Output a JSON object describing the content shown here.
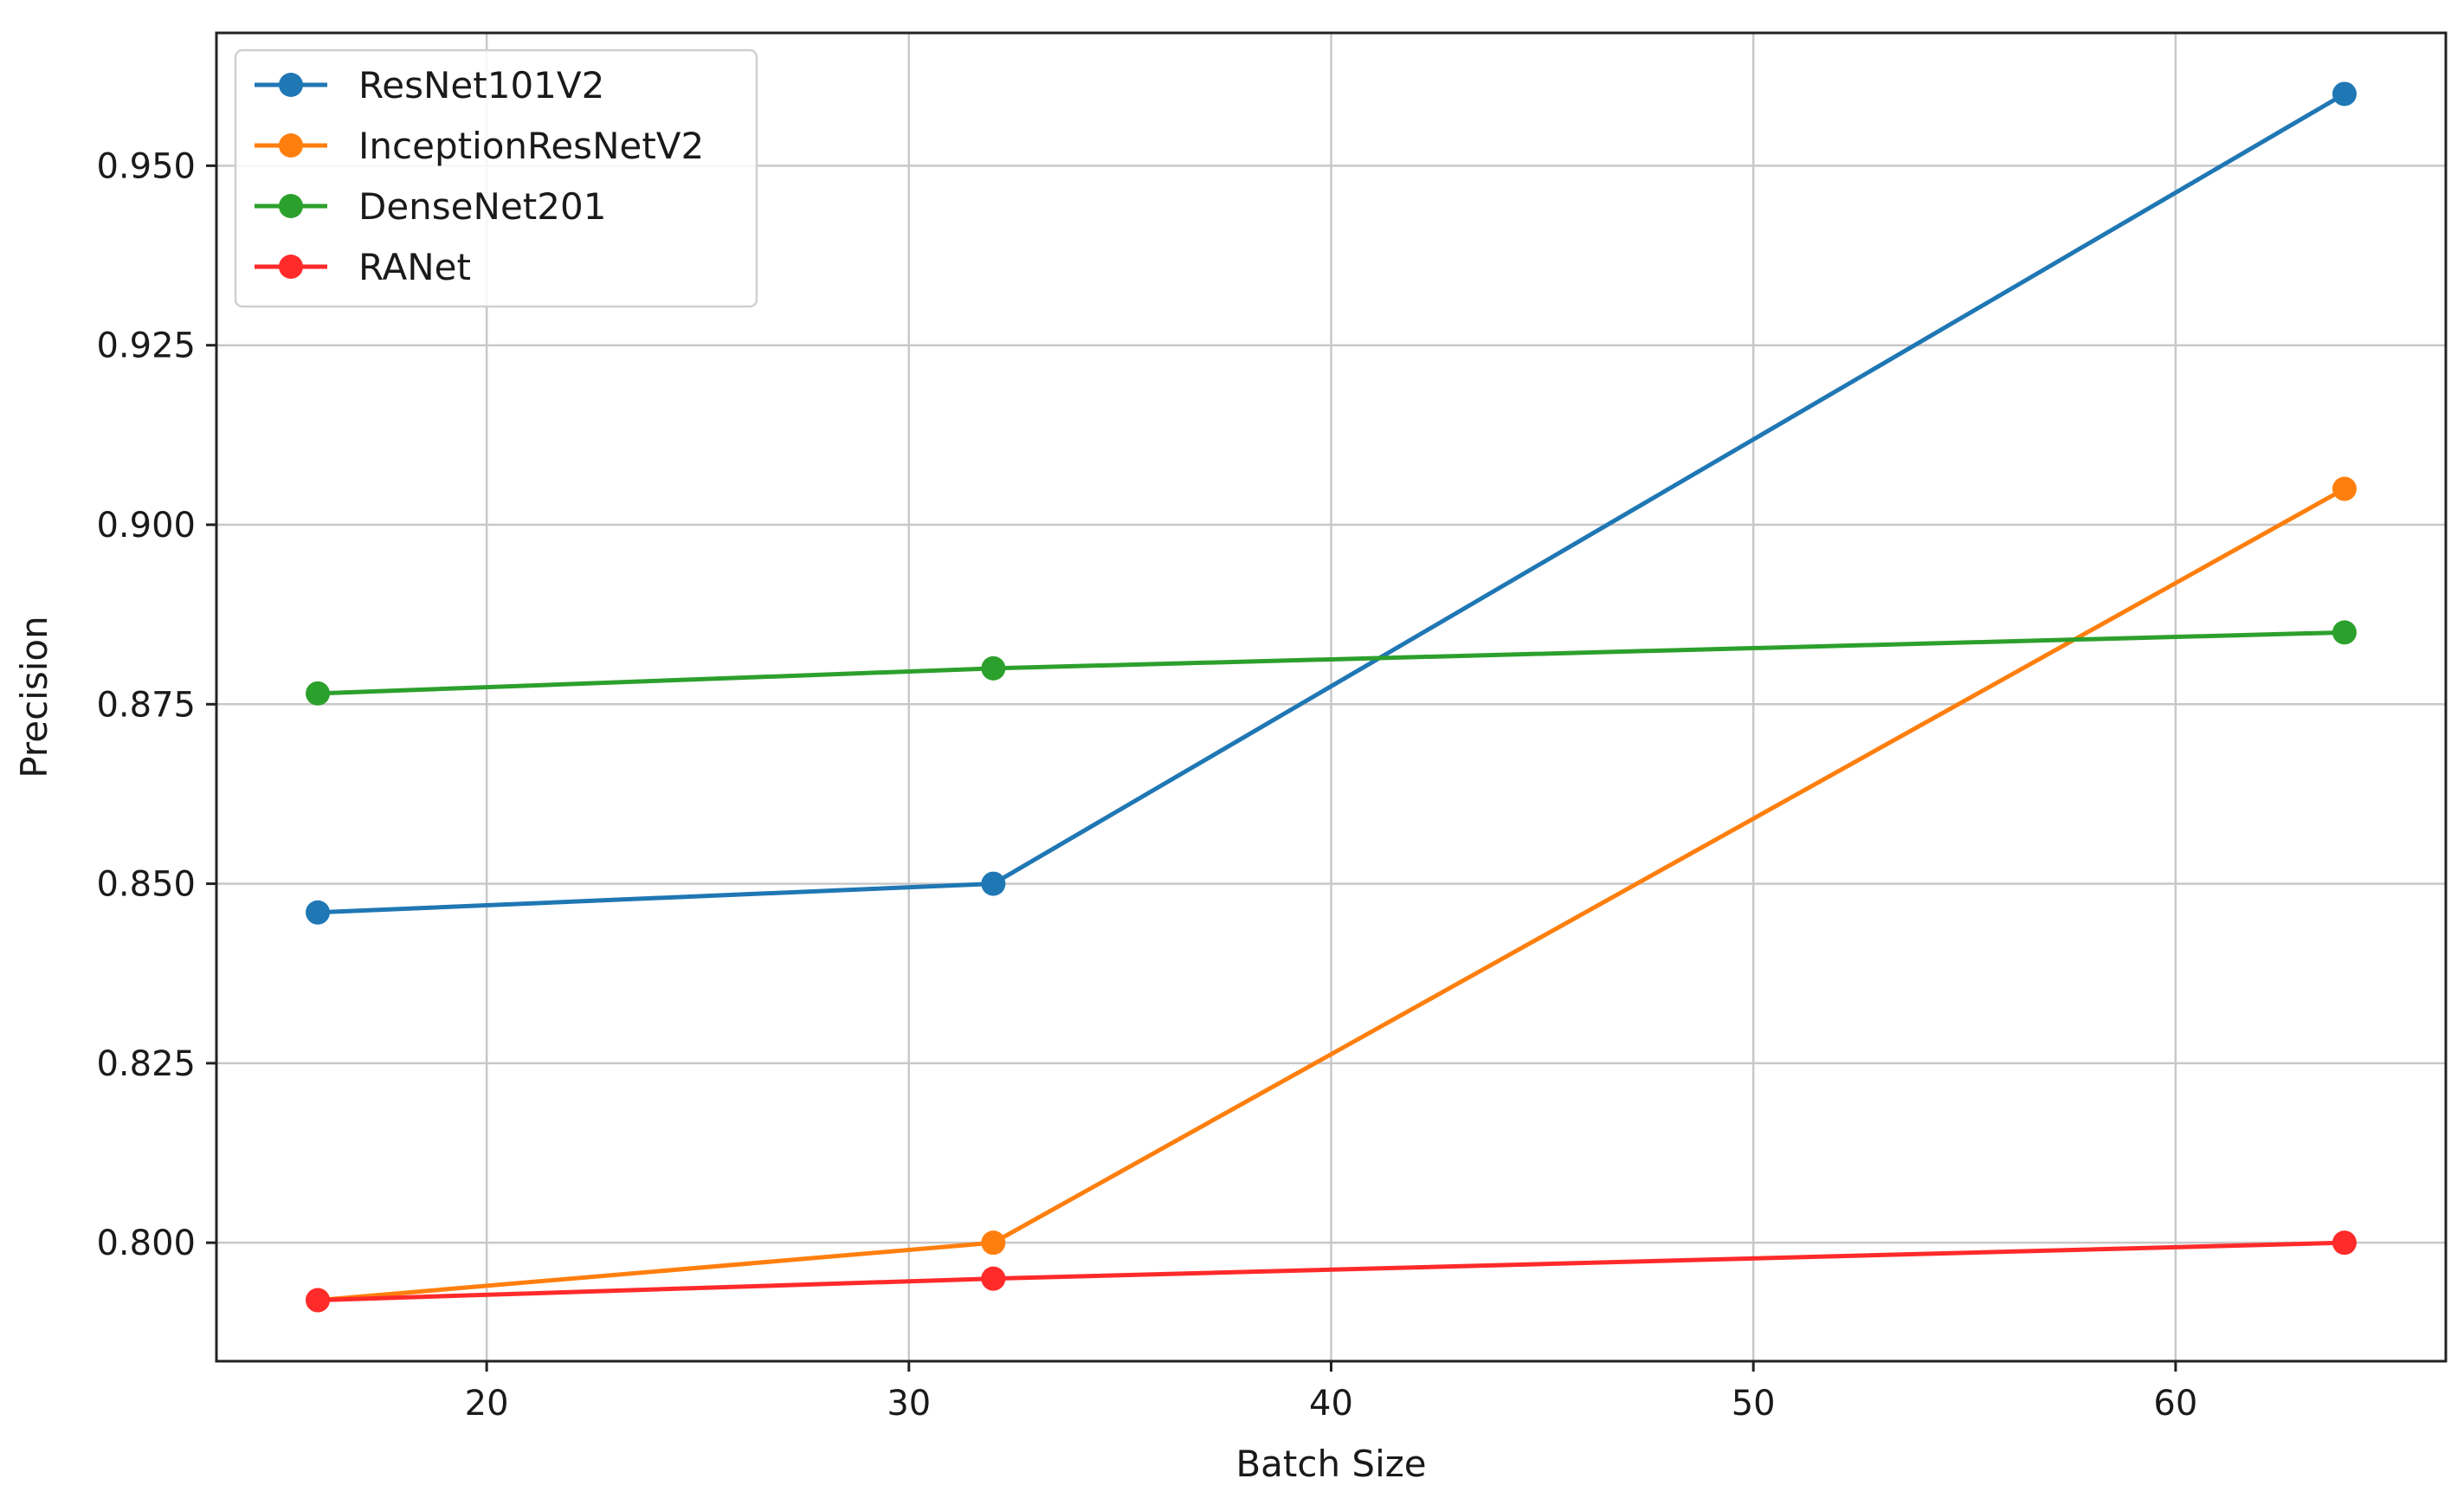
{
  "chart_data": {
    "type": "line",
    "title": "",
    "xlabel": "Batch Size",
    "ylabel": "Precision",
    "x": [
      16,
      32,
      64
    ],
    "xlim": [
      13.6,
      66.4
    ],
    "ylim": [
      0.7835,
      0.9685
    ],
    "xticks": [
      20,
      30,
      40,
      50,
      60
    ],
    "yticks": [
      0.8,
      0.825,
      0.85,
      0.875,
      0.9,
      0.925,
      0.95
    ],
    "xtick_labels": [
      "20",
      "30",
      "40",
      "50",
      "60"
    ],
    "ytick_labels": [
      "0.800",
      "0.825",
      "0.850",
      "0.875",
      "0.900",
      "0.925",
      "0.950"
    ],
    "grid": true,
    "legend_position": "top-left",
    "series": [
      {
        "name": "ResNet101V2",
        "color": "#1f77b4",
        "values": [
          0.846,
          0.85,
          0.96
        ]
      },
      {
        "name": "InceptionResNetV2",
        "color": "#ff7f0e",
        "values": [
          0.792,
          0.8,
          0.905
        ]
      },
      {
        "name": "DenseNet201",
        "color": "#2ca02c",
        "values": [
          0.8765,
          0.88,
          0.885
        ]
      },
      {
        "name": "RANet",
        "color": "#ff2a2a",
        "values": [
          0.792,
          0.795,
          0.8
        ]
      }
    ]
  }
}
